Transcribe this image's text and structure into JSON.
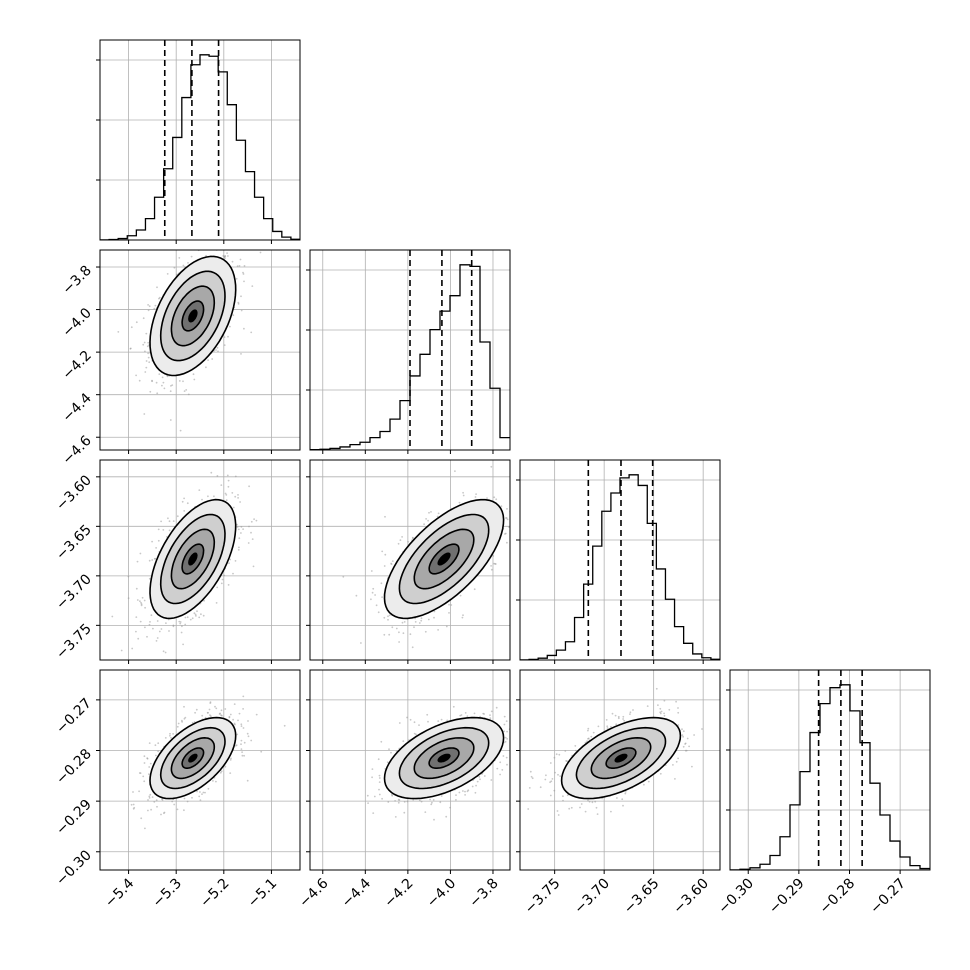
{
  "chart_data": {
    "type": "corner",
    "grid": true,
    "parameters": [
      {
        "index": 0,
        "mean": -5.265,
        "sd": 0.045,
        "ticks": [
          -5.4,
          -5.3,
          -5.2,
          -5.1
        ],
        "tick_labels": [
          "−5.4",
          "−5.3",
          "−5.2",
          "−5.1"
        ],
        "range": [
          -5.46,
          -5.04
        ],
        "quantiles": [
          -5.324,
          -5.267,
          -5.211
        ]
      },
      {
        "index": 1,
        "mean": -4.03,
        "sd": 0.14,
        "ticks": [
          -4.6,
          -4.4,
          -4.2,
          -4.0,
          -3.8
        ],
        "tick_labels": [
          "−4.6",
          "−4.4",
          "−4.2",
          "−4.0",
          "−3.8"
        ],
        "range": [
          -4.66,
          -3.72
        ],
        "quantiles": [
          -4.19,
          -4.04,
          -3.9
        ]
      },
      {
        "index": 2,
        "mean": -3.683,
        "sd": 0.03,
        "ticks": [
          -3.75,
          -3.7,
          -3.65,
          -3.6
        ],
        "tick_labels": [
          "−3.75",
          "−3.70",
          "−3.65",
          "−3.60"
        ],
        "range": [
          -3.785,
          -3.583
        ],
        "quantiles": [
          -3.716,
          -3.683,
          -3.651
        ]
      },
      {
        "index": 3,
        "mean": -0.2815,
        "sd": 0.004,
        "ticks": [
          -0.3,
          -0.29,
          -0.28,
          -0.27
        ],
        "tick_labels": [
          "−0.30",
          "−0.29",
          "−0.28",
          "−0.27"
        ],
        "range": [
          -0.3036,
          -0.2641
        ],
        "quantiles": [
          -0.2861,
          -0.2817,
          -0.2775
        ]
      }
    ],
    "histograms": [
      [
        1,
        3,
        10,
        30,
        70,
        150,
        300,
        500,
        720,
        1000,
        1230,
        1300,
        1290,
        1180,
        950,
        700,
        480,
        300,
        150,
        60,
        20,
        5
      ],
      [
        2,
        5,
        10,
        20,
        35,
        50,
        80,
        120,
        200,
        320,
        480,
        620,
        780,
        900,
        1000,
        1200,
        1190,
        700,
        400,
        80
      ],
      [
        1,
        4,
        12,
        30,
        65,
        120,
        280,
        500,
        750,
        980,
        1100,
        1200,
        1220,
        1150,
        900,
        600,
        400,
        220,
        110,
        40,
        15,
        5
      ],
      [
        1,
        5,
        15,
        40,
        100,
        230,
        450,
        680,
        950,
        1150,
        1260,
        1280,
        1100,
        880,
        600,
        380,
        200,
        90,
        30,
        10
      ]
    ],
    "correlations": {
      "1-0": 0.45,
      "2-0": 0.55,
      "2-1": 0.65,
      "3-0": 0.55,
      "3-1": 0.5,
      "3-2": 0.55
    },
    "contour_levels_sigma": [
      0.5,
      1.0,
      1.5,
      2.0
    ]
  }
}
